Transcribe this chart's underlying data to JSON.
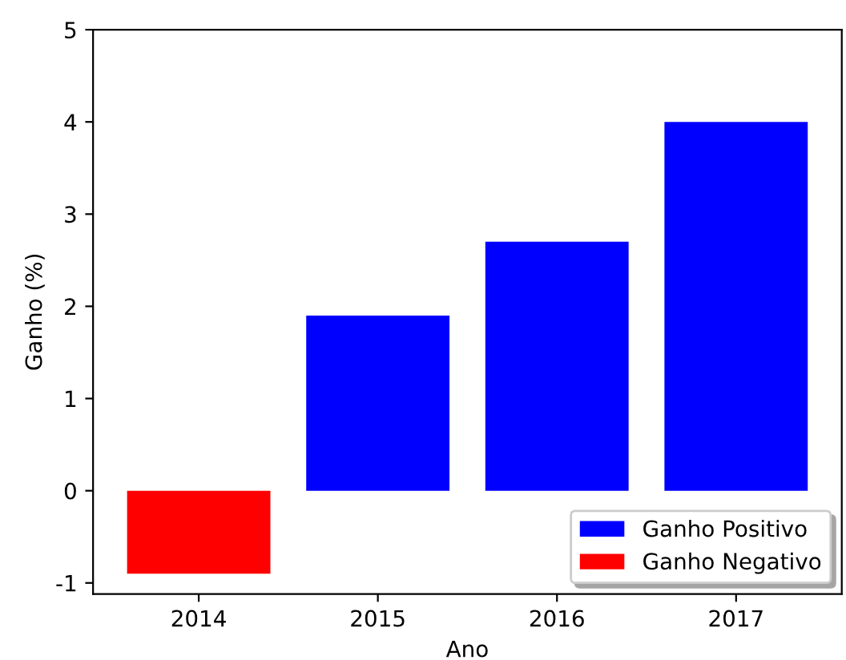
{
  "chart_data": {
    "type": "bar",
    "xlabel": "Ano",
    "ylabel": "Ganho (%)",
    "categories": [
      "2014",
      "2015",
      "2016",
      "2017"
    ],
    "series": [
      {
        "name": "Ganho Positivo",
        "color": "#0000ff",
        "values": [
          null,
          1.9,
          2.7,
          4.0
        ]
      },
      {
        "name": "Ganho Negativo",
        "color": "#ff0000",
        "values": [
          -0.9,
          null,
          null,
          null
        ]
      }
    ],
    "ylim": [
      -1.12,
      5
    ],
    "yticks": [
      -1,
      0,
      1,
      2,
      3,
      4,
      5
    ],
    "grid": false,
    "legend": "bottom right"
  }
}
